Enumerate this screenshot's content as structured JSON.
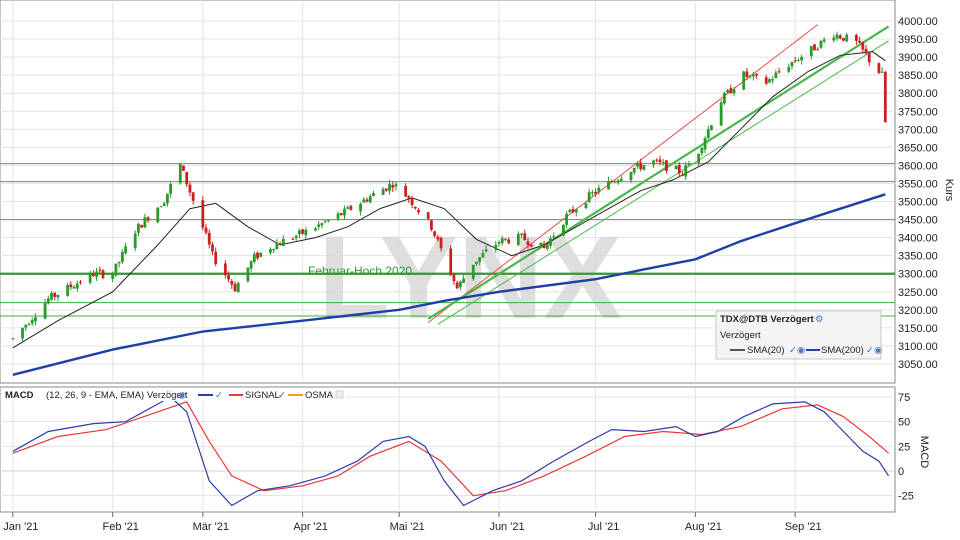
{
  "watermark": "LYNX",
  "colors": {
    "up": "#2a9a2a",
    "down": "#cc1f1f",
    "sma20": "#222222",
    "sma200": "#1f3fa8",
    "resistance": "#3cae3c",
    "channel_top": "#e84a4a",
    "channel_bottom": "#49b749",
    "macd": "#2b3ea8",
    "signal": "#e83a3a",
    "osma": "#f0a030"
  },
  "price_panel": {
    "y_axis_label": "Kurs",
    "y_ticks": [
      "4000.00",
      "3950.00",
      "3900.00",
      "3850.00",
      "3800.00",
      "3750.00",
      "3700.00",
      "3650.00",
      "3600.00",
      "3550.00",
      "3500.00",
      "3450.00",
      "3400.00",
      "3350.00",
      "3300.00",
      "3250.00",
      "3200.00",
      "3150.00",
      "3100.00",
      "3050.00"
    ],
    "annotation": "Februar-Hoch 2020",
    "legend": {
      "title": "TDX@DTB Verzögert",
      "subtitle": "Verzögert",
      "sma20": "SMA(20)",
      "sma200": "SMA(200)"
    }
  },
  "macd_panel": {
    "header": {
      "name": "MACD",
      "params": "(12, 26, 9 - EMA, EMA) Verzögert",
      "signal": "SIGNAL",
      "osma": "OSMA"
    },
    "y_axis_label": "MACD",
    "y_ticks": [
      "75",
      "50",
      "25",
      "0",
      "-25"
    ]
  },
  "x_ticks": [
    "Jan '21",
    "Feb '21",
    "Mär '21",
    "Apr '21",
    "Mai '21",
    "Jun '21",
    "Jul '21",
    "Aug '21",
    "Sep '21"
  ],
  "chart_data": [
    {
      "type": "candlestick",
      "title": "TDX@DTB Verzögert",
      "ylabel": "Kurs",
      "ylim": [
        3010,
        4010
      ],
      "x_range": [
        "2021-01-01",
        "2021-09-30"
      ],
      "grid": true,
      "legend_position": "bottom-right",
      "series": [
        {
          "name": "TDX@DTB Verzögert",
          "type": "ohlc",
          "anchors": [
            [
              "2021-01-01",
              3120
            ],
            [
              "2021-01-12",
              3230
            ],
            [
              "2021-01-26",
              3300
            ],
            [
              "2021-02-01",
              3300
            ],
            [
              "2021-02-08",
              3420
            ],
            [
              "2021-02-17",
              3505
            ],
            [
              "2021-02-22",
              3600
            ],
            [
              "2021-02-27",
              3480
            ],
            [
              "2021-03-04",
              3350
            ],
            [
              "2021-03-11",
              3260
            ],
            [
              "2021-03-17",
              3345
            ],
            [
              "2021-03-23",
              3380
            ],
            [
              "2021-04-03",
              3420
            ],
            [
              "2021-04-14",
              3470
            ],
            [
              "2021-04-24",
              3525
            ],
            [
              "2021-04-29",
              3550
            ],
            [
              "2021-05-04",
              3510
            ],
            [
              "2021-05-11",
              3430
            ],
            [
              "2021-05-19",
              3260
            ],
            [
              "2021-05-24",
              3330
            ],
            [
              "2021-06-01",
              3390
            ],
            [
              "2021-06-08",
              3400
            ],
            [
              "2021-06-15",
              3370
            ],
            [
              "2021-06-22",
              3460
            ],
            [
              "2021-06-29",
              3515
            ],
            [
              "2021-07-05",
              3550
            ],
            [
              "2021-07-12",
              3590
            ],
            [
              "2021-07-19",
              3610
            ],
            [
              "2021-07-28",
              3580
            ],
            [
              "2021-08-02",
              3640
            ],
            [
              "2021-08-09",
              3780
            ],
            [
              "2021-08-16",
              3850
            ],
            [
              "2021-08-23",
              3830
            ],
            [
              "2021-08-30",
              3880
            ],
            [
              "2021-09-06",
              3920
            ],
            [
              "2021-09-13",
              3965
            ],
            [
              "2021-09-20",
              3940
            ],
            [
              "2021-09-23",
              3905
            ],
            [
              "2021-09-25",
              3880
            ],
            [
              "2021-09-28",
              3850
            ],
            [
              "2021-09-29",
              3740
            ]
          ]
        },
        {
          "name": "SMA(20)",
          "type": "line",
          "points": [
            [
              "2021-01-01",
              3095
            ],
            [
              "2021-01-15",
              3170
            ],
            [
              "2021-02-01",
              3250
            ],
            [
              "2021-02-15",
              3380
            ],
            [
              "2021-02-25",
              3480
            ],
            [
              "2021-03-05",
              3495
            ],
            [
              "2021-03-15",
              3430
            ],
            [
              "2021-03-25",
              3380
            ],
            [
              "2021-04-05",
              3400
            ],
            [
              "2021-04-15",
              3430
            ],
            [
              "2021-04-25",
              3480
            ],
            [
              "2021-05-05",
              3510
            ],
            [
              "2021-05-15",
              3480
            ],
            [
              "2021-05-25",
              3395
            ],
            [
              "2021-06-05",
              3350
            ],
            [
              "2021-06-15",
              3380
            ],
            [
              "2021-06-25",
              3430
            ],
            [
              "2021-07-05",
              3480
            ],
            [
              "2021-07-15",
              3530
            ],
            [
              "2021-07-25",
              3560
            ],
            [
              "2021-08-05",
              3610
            ],
            [
              "2021-08-15",
              3700
            ],
            [
              "2021-08-25",
              3790
            ],
            [
              "2021-09-05",
              3860
            ],
            [
              "2021-09-15",
              3905
            ],
            [
              "2021-09-25",
              3915
            ],
            [
              "2021-09-29",
              3890
            ]
          ]
        },
        {
          "name": "SMA(200)",
          "type": "line",
          "points": [
            [
              "2021-01-01",
              3020
            ],
            [
              "2021-02-01",
              3090
            ],
            [
              "2021-03-01",
              3140
            ],
            [
              "2021-04-01",
              3170
            ],
            [
              "2021-05-01",
              3200
            ],
            [
              "2021-05-15",
              3225
            ],
            [
              "2021-06-01",
              3250
            ],
            [
              "2021-07-01",
              3285
            ],
            [
              "2021-07-15",
              3310
            ],
            [
              "2021-08-01",
              3340
            ],
            [
              "2021-08-15",
              3390
            ],
            [
              "2021-09-01",
              3440
            ],
            [
              "2021-09-15",
              3480
            ],
            [
              "2021-09-29",
              3520
            ]
          ]
        }
      ],
      "horizontal_levels": [
        3605,
        3555,
        3450,
        3300,
        3220,
        3183
      ],
      "annotations": [
        {
          "text": "Februar-Hoch 2020",
          "level": 3300
        }
      ],
      "trend_lines": [
        {
          "name": "channel-top",
          "from": [
            "2021-05-10",
            3165
          ],
          "to": [
            "2021-09-08",
            3990
          ]
        },
        {
          "name": "channel-bottom-1",
          "from": [
            "2021-05-10",
            3175
          ],
          "to": [
            "2021-09-30",
            3985
          ]
        },
        {
          "name": "channel-bottom-2",
          "from": [
            "2021-05-13",
            3160
          ],
          "to": [
            "2021-09-30",
            3945
          ]
        }
      ]
    },
    {
      "type": "line",
      "title": "MACD",
      "ylabel": "MACD",
      "ylim": [
        -40,
        78
      ],
      "grid": true,
      "series": [
        {
          "name": "MACD",
          "points": [
            [
              "2021-01-01",
              20
            ],
            [
              "2021-01-12",
              40
            ],
            [
              "2021-01-26",
              48
            ],
            [
              "2021-02-05",
              50
            ],
            [
              "2021-02-19",
              75
            ],
            [
              "2021-02-24",
              60
            ],
            [
              "2021-03-03",
              -10
            ],
            [
              "2021-03-10",
              -35
            ],
            [
              "2021-03-18",
              -20
            ],
            [
              "2021-03-28",
              -15
            ],
            [
              "2021-04-08",
              -5
            ],
            [
              "2021-04-18",
              10
            ],
            [
              "2021-04-26",
              30
            ],
            [
              "2021-05-04",
              35
            ],
            [
              "2021-05-09",
              25
            ],
            [
              "2021-05-15",
              -10
            ],
            [
              "2021-05-21",
              -35
            ],
            [
              "2021-05-30",
              -20
            ],
            [
              "2021-06-08",
              -10
            ],
            [
              "2021-06-18",
              10
            ],
            [
              "2021-06-29",
              30
            ],
            [
              "2021-07-06",
              42
            ],
            [
              "2021-07-16",
              40
            ],
            [
              "2021-07-26",
              45
            ],
            [
              "2021-08-01",
              35
            ],
            [
              "2021-08-08",
              40
            ],
            [
              "2021-08-16",
              55
            ],
            [
              "2021-08-25",
              68
            ],
            [
              "2021-09-04",
              70
            ],
            [
              "2021-09-10",
              60
            ],
            [
              "2021-09-16",
              40
            ],
            [
              "2021-09-22",
              20
            ],
            [
              "2021-09-27",
              10
            ],
            [
              "2021-09-30",
              -5
            ]
          ]
        },
        {
          "name": "SIGNAL",
          "points": [
            [
              "2021-01-01",
              18
            ],
            [
              "2021-01-15",
              35
            ],
            [
              "2021-01-30",
              42
            ],
            [
              "2021-02-15",
              60
            ],
            [
              "2021-02-24",
              70
            ],
            [
              "2021-03-03",
              30
            ],
            [
              "2021-03-10",
              -5
            ],
            [
              "2021-03-20",
              -20
            ],
            [
              "2021-04-01",
              -15
            ],
            [
              "2021-04-12",
              -5
            ],
            [
              "2021-04-22",
              15
            ],
            [
              "2021-05-04",
              30
            ],
            [
              "2021-05-14",
              10
            ],
            [
              "2021-05-24",
              -25
            ],
            [
              "2021-06-03",
              -20
            ],
            [
              "2021-06-15",
              -5
            ],
            [
              "2021-06-28",
              15
            ],
            [
              "2021-07-10",
              35
            ],
            [
              "2021-07-22",
              40
            ],
            [
              "2021-08-03",
              37
            ],
            [
              "2021-08-15",
              45
            ],
            [
              "2021-08-28",
              63
            ],
            [
              "2021-09-08",
              67
            ],
            [
              "2021-09-16",
              55
            ],
            [
              "2021-09-24",
              35
            ],
            [
              "2021-09-30",
              18
            ]
          ]
        }
      ]
    }
  ]
}
